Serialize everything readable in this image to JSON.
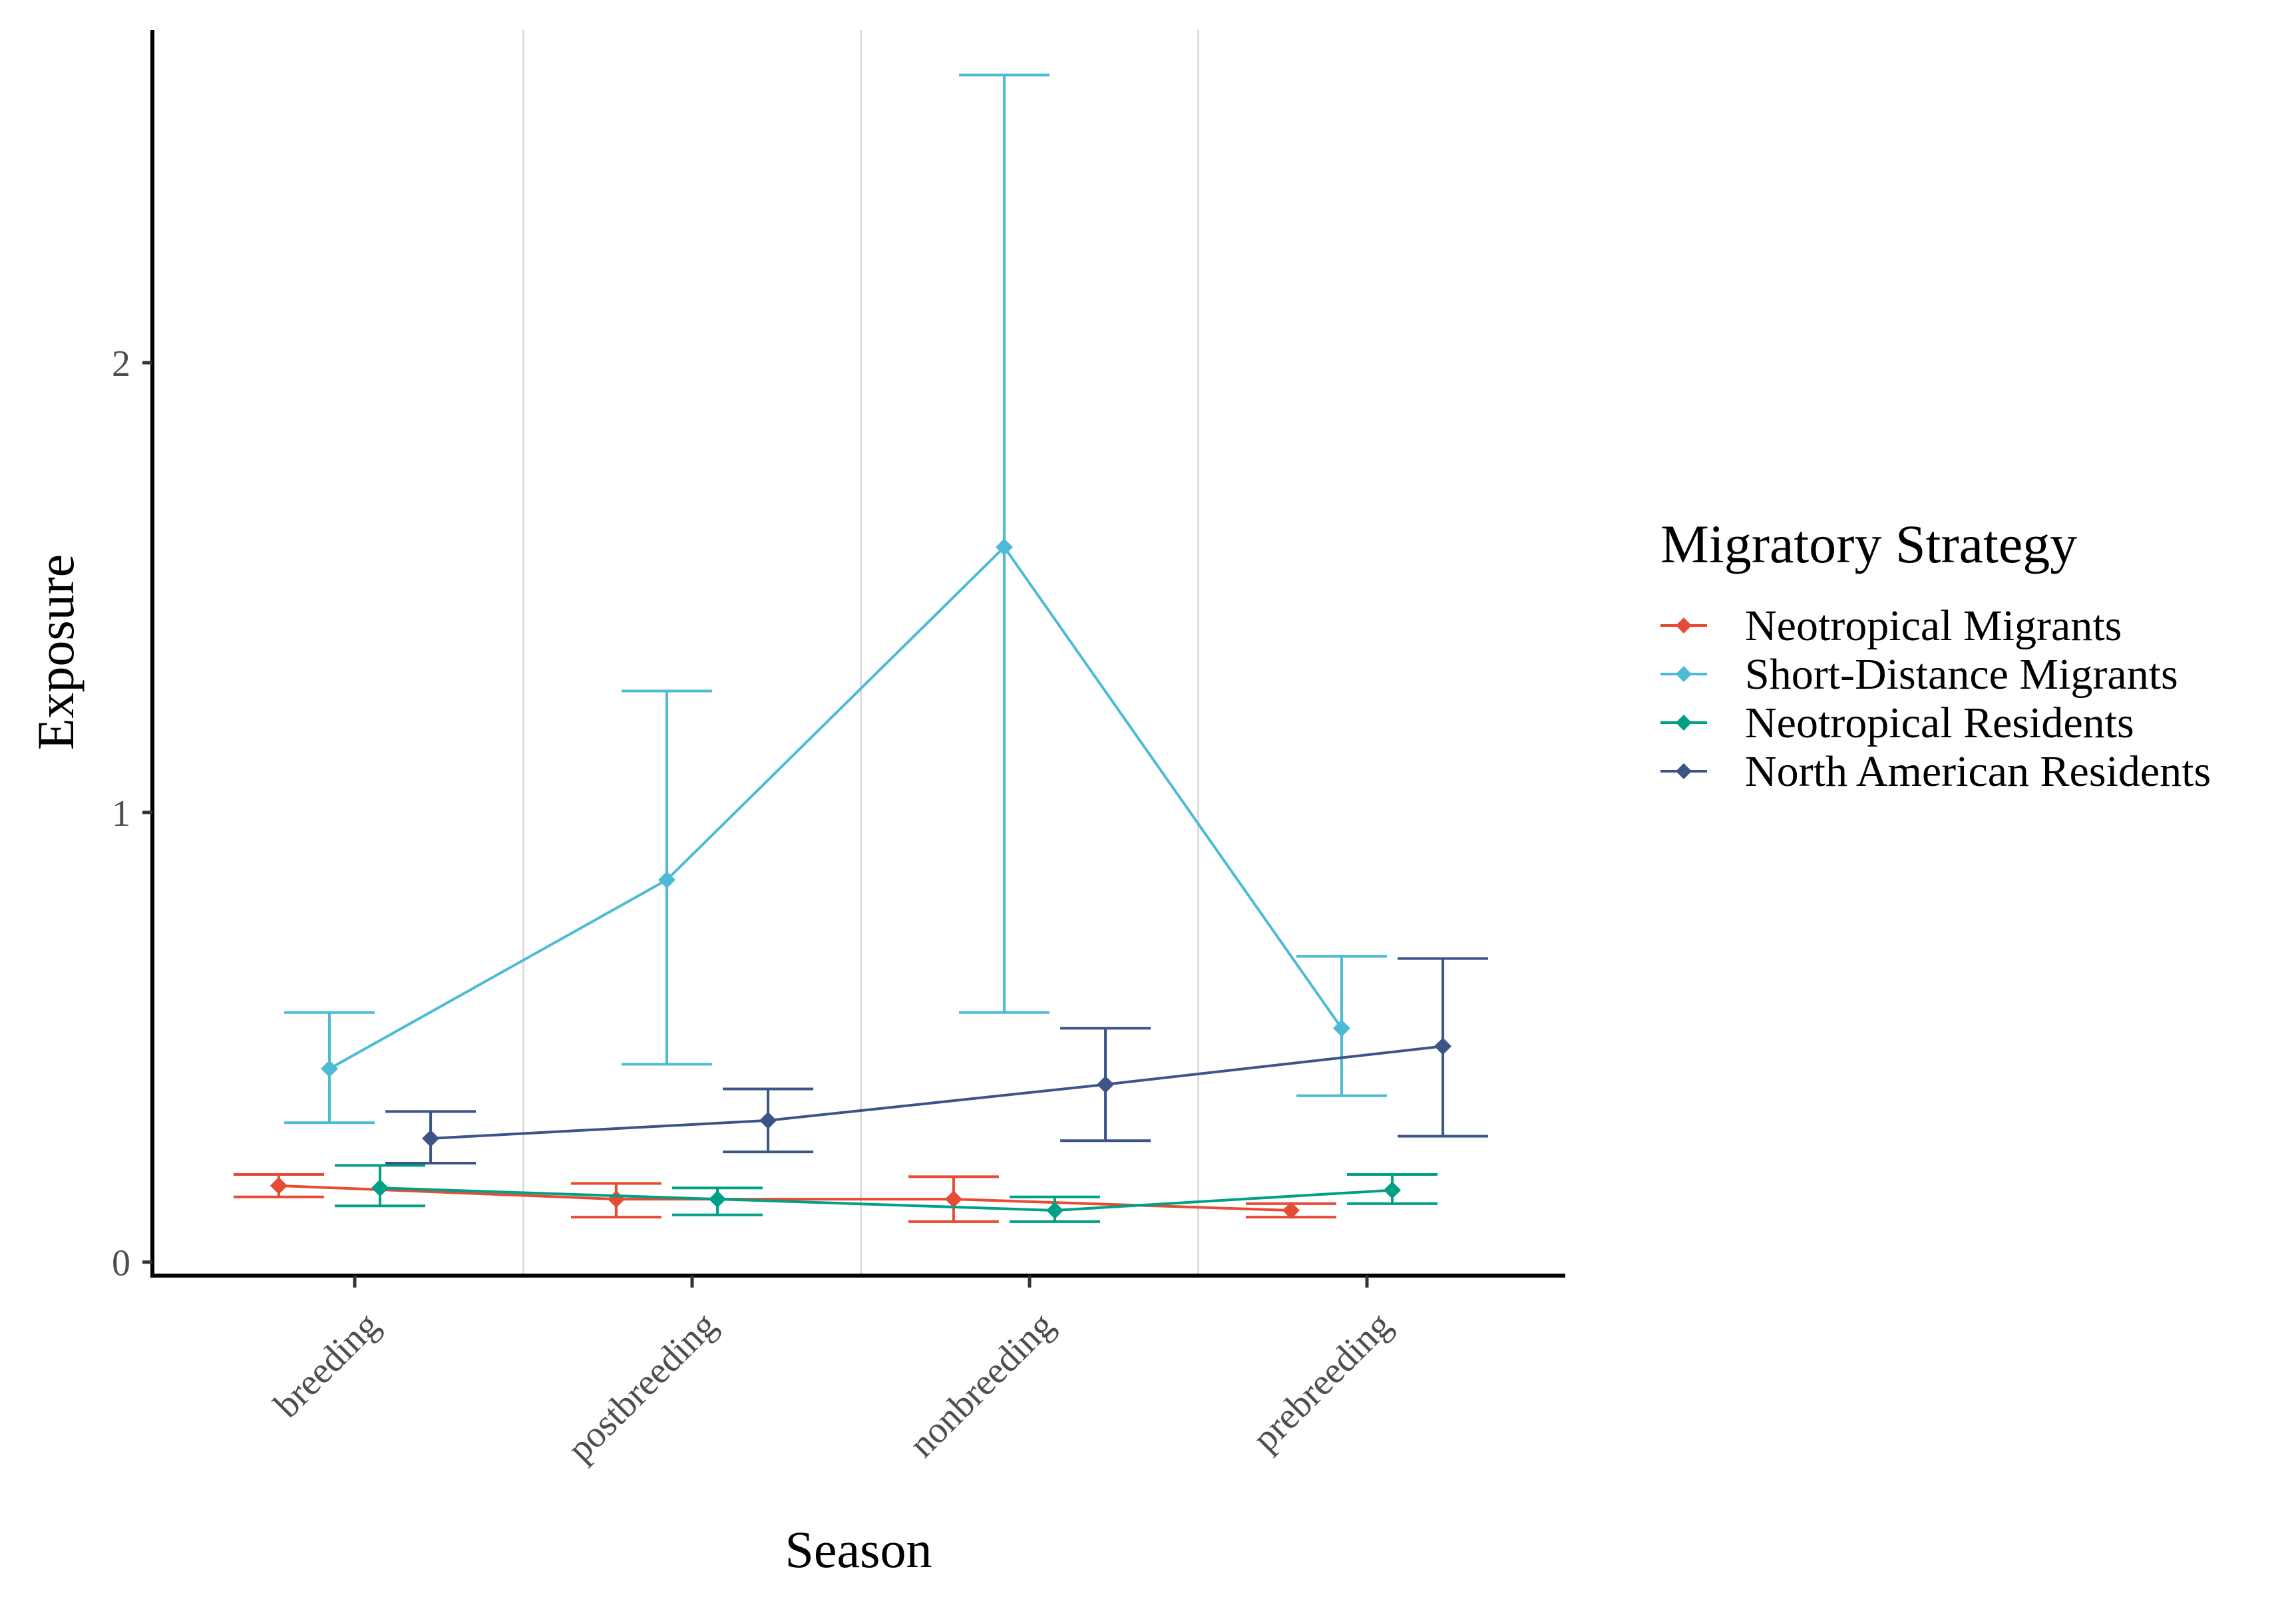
{
  "chart_data": {
    "type": "line",
    "title": "",
    "xlabel": "Season",
    "ylabel": "Exposure",
    "categories": [
      "breeding",
      "postbreeding",
      "nonbreeding",
      "prebreeding"
    ],
    "y_ticks": [
      0,
      1,
      2
    ],
    "y_tick_labels": [
      "0",
      "1",
      "2"
    ],
    "ylim": [
      -0.03,
      2.74
    ],
    "grid": "vertical lines between seasons",
    "legend": {
      "title": "Migratory Strategy",
      "position": "right"
    },
    "series": [
      {
        "name": "Neotropical Migrants",
        "color": "#E64B35",
        "dodge": -0.225,
        "values": [
          0.17,
          0.14,
          0.14,
          0.115
        ],
        "lower": [
          0.145,
          0.1,
          0.09,
          0.1
        ],
        "upper": [
          0.195,
          0.175,
          0.19,
          0.13
        ]
      },
      {
        "name": "Short-Distance Migrants",
        "color": "#4DBBD5",
        "dodge": -0.075,
        "values": [
          0.43,
          0.85,
          1.59,
          0.52
        ],
        "lower": [
          0.31,
          0.44,
          0.555,
          0.37
        ],
        "upper": [
          0.555,
          1.27,
          2.64,
          0.68
        ]
      },
      {
        "name": "Neotropical Residents",
        "color": "#00A087",
        "dodge": 0.075,
        "values": [
          0.165,
          0.14,
          0.115,
          0.16
        ],
        "lower": [
          0.125,
          0.105,
          0.09,
          0.13
        ],
        "upper": [
          0.215,
          0.165,
          0.145,
          0.195
        ]
      },
      {
        "name": "North American Residents",
        "color": "#3C5488",
        "dodge": 0.225,
        "values": [
          0.275,
          0.315,
          0.395,
          0.48
        ],
        "lower": [
          0.22,
          0.245,
          0.27,
          0.28
        ],
        "upper": [
          0.335,
          0.385,
          0.52,
          0.675
        ]
      }
    ]
  }
}
